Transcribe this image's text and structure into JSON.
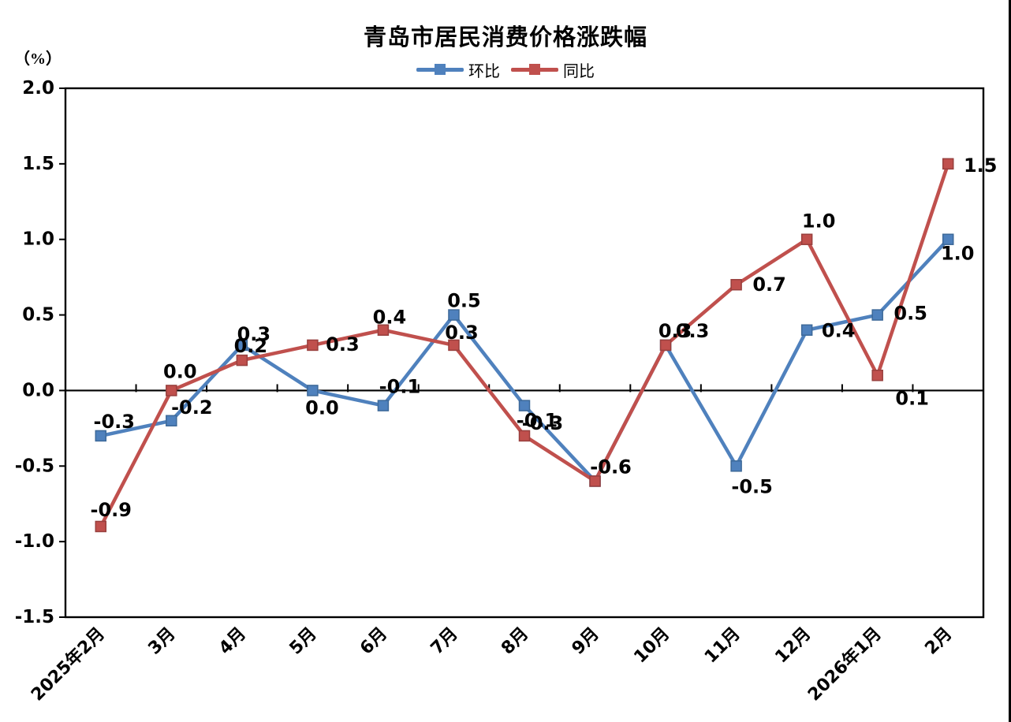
{
  "title": "青岛市居民消费价格涨跌幅",
  "unit_label": "（%）",
  "legend": [
    {
      "label": "环比",
      "color": "#4F81BD"
    },
    {
      "label": "同比",
      "color": "#C0504D"
    }
  ],
  "chart_data": {
    "type": "line",
    "title": "青岛市居民消费价格涨跌幅",
    "ylabel": "（%）",
    "xlabel": "",
    "categories": [
      "2025年2月",
      "3月",
      "4月",
      "5月",
      "6月",
      "7月",
      "8月",
      "9月",
      "10月",
      "11月",
      "12月",
      "2026年1月",
      "2月"
    ],
    "series": [
      {
        "name": "环比",
        "color": "#4F81BD",
        "marker": "square",
        "values": [
          -0.3,
          -0.2,
          0.3,
          0.0,
          -0.1,
          0.5,
          -0.1,
          -0.6,
          0.3,
          -0.5,
          0.4,
          0.5,
          1.0
        ]
      },
      {
        "name": "同比",
        "color": "#C0504D",
        "marker": "square",
        "values": [
          -0.9,
          0.0,
          0.2,
          0.3,
          0.4,
          0.3,
          -0.3,
          -0.6,
          0.3,
          0.7,
          1.0,
          0.1,
          1.5
        ]
      }
    ],
    "ylim": [
      -1.5,
      2.0
    ],
    "yticks": [
      2.0,
      1.5,
      1.0,
      0.5,
      0.0,
      -0.5,
      -1.0,
      -1.5
    ],
    "grid": false,
    "zero_line": true,
    "data_labels": true,
    "legend_position": "top-center"
  }
}
